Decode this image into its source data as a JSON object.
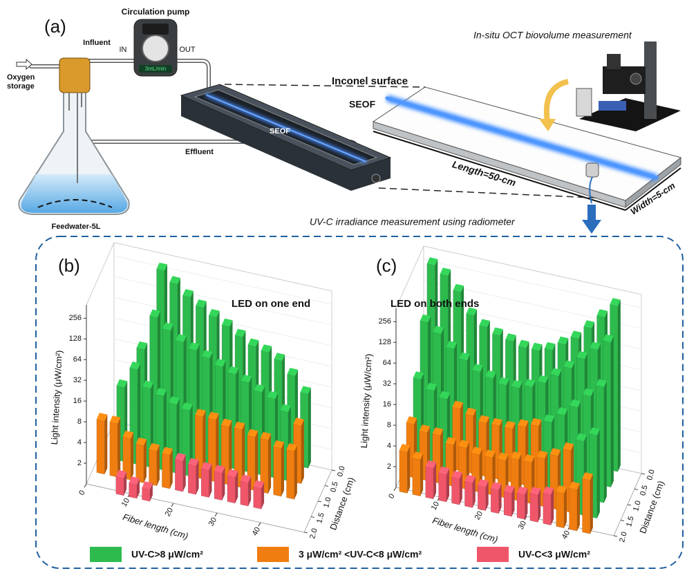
{
  "panel_a": {
    "label": "(a)",
    "pump": "Circulation pump",
    "pump_rate": "3mL/min",
    "influent": "Influent",
    "in": "IN",
    "out": "OUT",
    "oxygen": "Oxygen",
    "storage": "storage",
    "feedwater": "Feedwater-5L",
    "seof_reactor": "SEOF",
    "effluent": "Effluent",
    "inconel": "Inconel surface",
    "seof_plate": "SEOF",
    "oct": "In-situ OCT biovolume measurement",
    "length": "Length=50-cm",
    "width": "Width=5-cm",
    "radiometer": "UV-C irradiance measurement using radiometer"
  },
  "legend": [
    {
      "label": "UV-C>8 μW/cm²",
      "color": "#2dbb4e"
    },
    {
      "label": "3 μW/cm² <UV-C<8 μW/cm²",
      "color": "#f07d10"
    },
    {
      "label": "UV-C<3 μW/cm²",
      "color": "#f0566a"
    }
  ],
  "chart_data": [
    {
      "type": "bar3d",
      "panel": "(b)",
      "annotation": "LED on one end",
      "x": [
        2,
        5,
        8,
        11,
        14,
        17,
        20,
        23,
        26,
        29,
        32,
        35,
        38,
        41,
        44
      ],
      "xlim": [
        0,
        50
      ],
      "xticks": [
        0,
        10,
        20,
        30,
        40
      ],
      "x_label": "Fiber length (cm)",
      "zlim": [
        0,
        2
      ],
      "zticks": [
        {
          "value": 0,
          "label": "0.0"
        },
        {
          "value": 0.5,
          "label": "0.5"
        },
        {
          "value": 1,
          "label": "1.0"
        },
        {
          "value": 1.5,
          "label": "1.5"
        },
        {
          "value": 2,
          "label": "2.0"
        }
      ],
      "z_label": "Distance (cm)",
      "ylim": [
        1,
        400
      ],
      "log_scale": true,
      "yticks": [
        2,
        4,
        8,
        16,
        32,
        64,
        128,
        256
      ],
      "y_label": "Light intensity (μW/cm²)",
      "series": [
        {
          "distance": 0,
          "values": [
            null,
            null,
            null,
            256,
            180,
            128,
            100,
            80,
            64,
            50,
            40,
            36,
            30,
            20,
            12
          ],
          "classes": [
            null,
            null,
            null,
            0,
            0,
            0,
            0,
            0,
            0,
            0,
            0,
            0,
            0,
            0,
            0
          ]
        },
        {
          "distance": 0.5,
          "values": [
            null,
            null,
            28,
            90,
            64,
            48,
            40,
            34,
            28,
            24,
            20,
            16,
            14,
            10,
            7
          ],
          "classes": [
            null,
            null,
            0,
            0,
            0,
            0,
            0,
            0,
            0,
            0,
            0,
            0,
            0,
            0,
            1
          ]
        },
        {
          "distance": 1,
          "values": [
            null,
            12,
            24,
            14,
            12,
            10,
            9,
            8,
            8,
            7,
            7,
            6,
            6,
            5,
            5
          ],
          "classes": [
            null,
            0,
            0,
            0,
            0,
            0,
            0,
            1,
            1,
            1,
            1,
            1,
            1,
            1,
            1
          ]
        },
        {
          "distance": 1.5,
          "values": [
            6,
            6,
            4,
            3.5,
            3.2,
            3.1,
            2.8,
            2.6,
            2.5,
            2.5,
            2.4,
            2.2,
            2,
            null,
            null
          ],
          "classes": [
            1,
            1,
            1,
            1,
            1,
            1,
            2,
            2,
            2,
            2,
            2,
            2,
            2,
            null,
            null
          ]
        },
        {
          "distance": 2,
          "values": [
            null,
            null,
            1.8,
            1.6,
            1.5,
            null,
            null,
            null,
            null,
            null,
            null,
            null,
            null,
            null,
            null
          ],
          "classes": [
            null,
            null,
            2,
            2,
            2,
            null,
            null,
            null,
            null,
            null,
            null,
            null,
            null,
            null,
            null
          ]
        }
      ]
    },
    {
      "type": "bar3d",
      "panel": "(c)",
      "annotation": "LED on both ends",
      "x": [
        2,
        5,
        8,
        11,
        14,
        17,
        20,
        23,
        26,
        29,
        32,
        35,
        38,
        41,
        44
      ],
      "xlim": [
        0,
        50
      ],
      "xticks": [
        0,
        10,
        20,
        30,
        40
      ],
      "x_label": "Fiber length (cm)",
      "zlim": [
        0,
        2
      ],
      "zticks": [
        {
          "value": 0,
          "label": "0.0"
        },
        {
          "value": 0.5,
          "label": "0.5"
        },
        {
          "value": 1,
          "label": "1.0"
        },
        {
          "value": 1.5,
          "label": "1.5"
        },
        {
          "value": 2,
          "label": "2.0"
        }
      ],
      "z_label": "Distance (cm)",
      "ylim": [
        1,
        400
      ],
      "log_scale": true,
      "yticks": [
        2,
        4,
        8,
        16,
        32,
        64,
        128,
        256
      ],
      "y_label": "Light intensity (μW/cm²)",
      "series": [
        {
          "distance": 0,
          "values": [
            256,
            200,
            128,
            64,
            48,
            40,
            36,
            32,
            32,
            36,
            48,
            64,
            100,
            160,
            256
          ],
          "classes": [
            0,
            0,
            0,
            0,
            0,
            0,
            0,
            0,
            0,
            0,
            0,
            0,
            0,
            0,
            0
          ]
        },
        {
          "distance": 0.5,
          "values": [
            64,
            48,
            32,
            24,
            18,
            16,
            14,
            14,
            16,
            20,
            28,
            40,
            60,
            90,
            128
          ],
          "classes": [
            0,
            0,
            0,
            0,
            0,
            0,
            0,
            0,
            0,
            0,
            0,
            0,
            0,
            0,
            0
          ]
        },
        {
          "distance": 1,
          "values": [
            16,
            12,
            10,
            8,
            7,
            6,
            6,
            6,
            7,
            8,
            10,
            14,
            20,
            32,
            48
          ],
          "classes": [
            0,
            0,
            0,
            1,
            1,
            1,
            1,
            1,
            1,
            1,
            0,
            0,
            0,
            0,
            0
          ]
        },
        {
          "distance": 1.5,
          "values": [
            6,
            5,
            5,
            4,
            4,
            3.5,
            3.5,
            3.5,
            4,
            4,
            5,
            6,
            8,
            12,
            16
          ],
          "classes": [
            1,
            1,
            1,
            1,
            1,
            1,
            1,
            1,
            1,
            1,
            1,
            1,
            1,
            0,
            0
          ]
        },
        {
          "distance": 2,
          "values": [
            4,
            3.4,
            2.8,
            2.5,
            2.4,
            2.3,
            2.2,
            2.2,
            2.2,
            2.3,
            2.5,
            2.8,
            3.2,
            4,
            6
          ],
          "classes": [
            1,
            1,
            2,
            2,
            2,
            2,
            2,
            2,
            2,
            2,
            2,
            2,
            1,
            1,
            1
          ]
        }
      ]
    }
  ]
}
